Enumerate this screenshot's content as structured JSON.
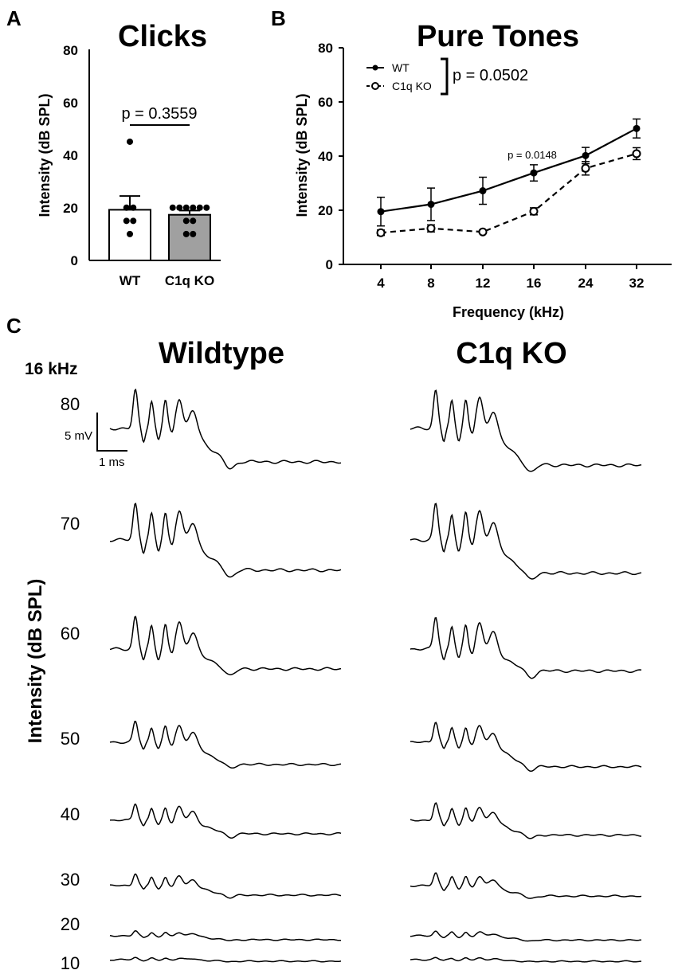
{
  "panels": {
    "a": {
      "letter": "A"
    },
    "b": {
      "letter": "B"
    },
    "c": {
      "letter": "C"
    }
  },
  "chart_data": [
    {
      "id": "clicks",
      "type": "bar",
      "title": "Clicks",
      "ylabel": "Intensity (dB SPL)",
      "xlabel": "",
      "ylim": [
        0,
        80
      ],
      "yticks": [
        "0",
        "20",
        "40",
        "60",
        "80"
      ],
      "categories": [
        "WT",
        "C1q KO"
      ],
      "values": [
        19.2,
        17.3
      ],
      "sem": [
        5.2,
        1.6
      ],
      "bar_colors": [
        "#ffffff",
        "#a0a0a0"
      ],
      "points": [
        [
          45,
          20,
          20,
          15,
          15,
          10
        ],
        [
          20,
          20,
          20,
          20,
          20,
          20,
          15,
          15,
          10,
          10
        ]
      ],
      "annotation": "p = 0.3559"
    },
    {
      "id": "pure-tones",
      "type": "line",
      "title": "Pure Tones",
      "xlabel": "Frequency (kHz)",
      "ylabel": "Intensity (dB SPL)",
      "ylim": [
        0,
        80
      ],
      "yticks": [
        "0",
        "20",
        "40",
        "60",
        "80"
      ],
      "categories": [
        "4",
        "8",
        "12",
        "16",
        "24",
        "32"
      ],
      "series": [
        {
          "name": "WT",
          "values": [
            19.5,
            22.2,
            27.2,
            33.8,
            40.2,
            50.2
          ],
          "err": [
            5.3,
            6.0,
            5.0,
            3.0,
            3.0,
            3.5
          ],
          "style": "solid-filled"
        },
        {
          "name": "C1q KO",
          "values": [
            11.7,
            13.3,
            12.0,
            19.6,
            35.5,
            40.9
          ],
          "err": [
            1.0,
            1.3,
            0.6,
            1.3,
            2.5,
            2.2
          ],
          "style": "dashed-open"
        }
      ],
      "legend_position": "top-left",
      "annotation_overall": "p = 0.0502",
      "annotation_point": {
        "category": "16",
        "text": "p = 0.0148"
      }
    }
  ],
  "abr": {
    "frequency_label": "16 kHz",
    "ylabel": "Intensity (dB SPL)",
    "scale_bar": {
      "voltage": "5 mV",
      "time": "1 ms"
    },
    "groups": [
      {
        "title": "Wildtype"
      },
      {
        "title": "C1q KO"
      }
    ],
    "levels": [
      "80",
      "70",
      "60",
      "50",
      "40",
      "30",
      "20",
      "10"
    ]
  }
}
